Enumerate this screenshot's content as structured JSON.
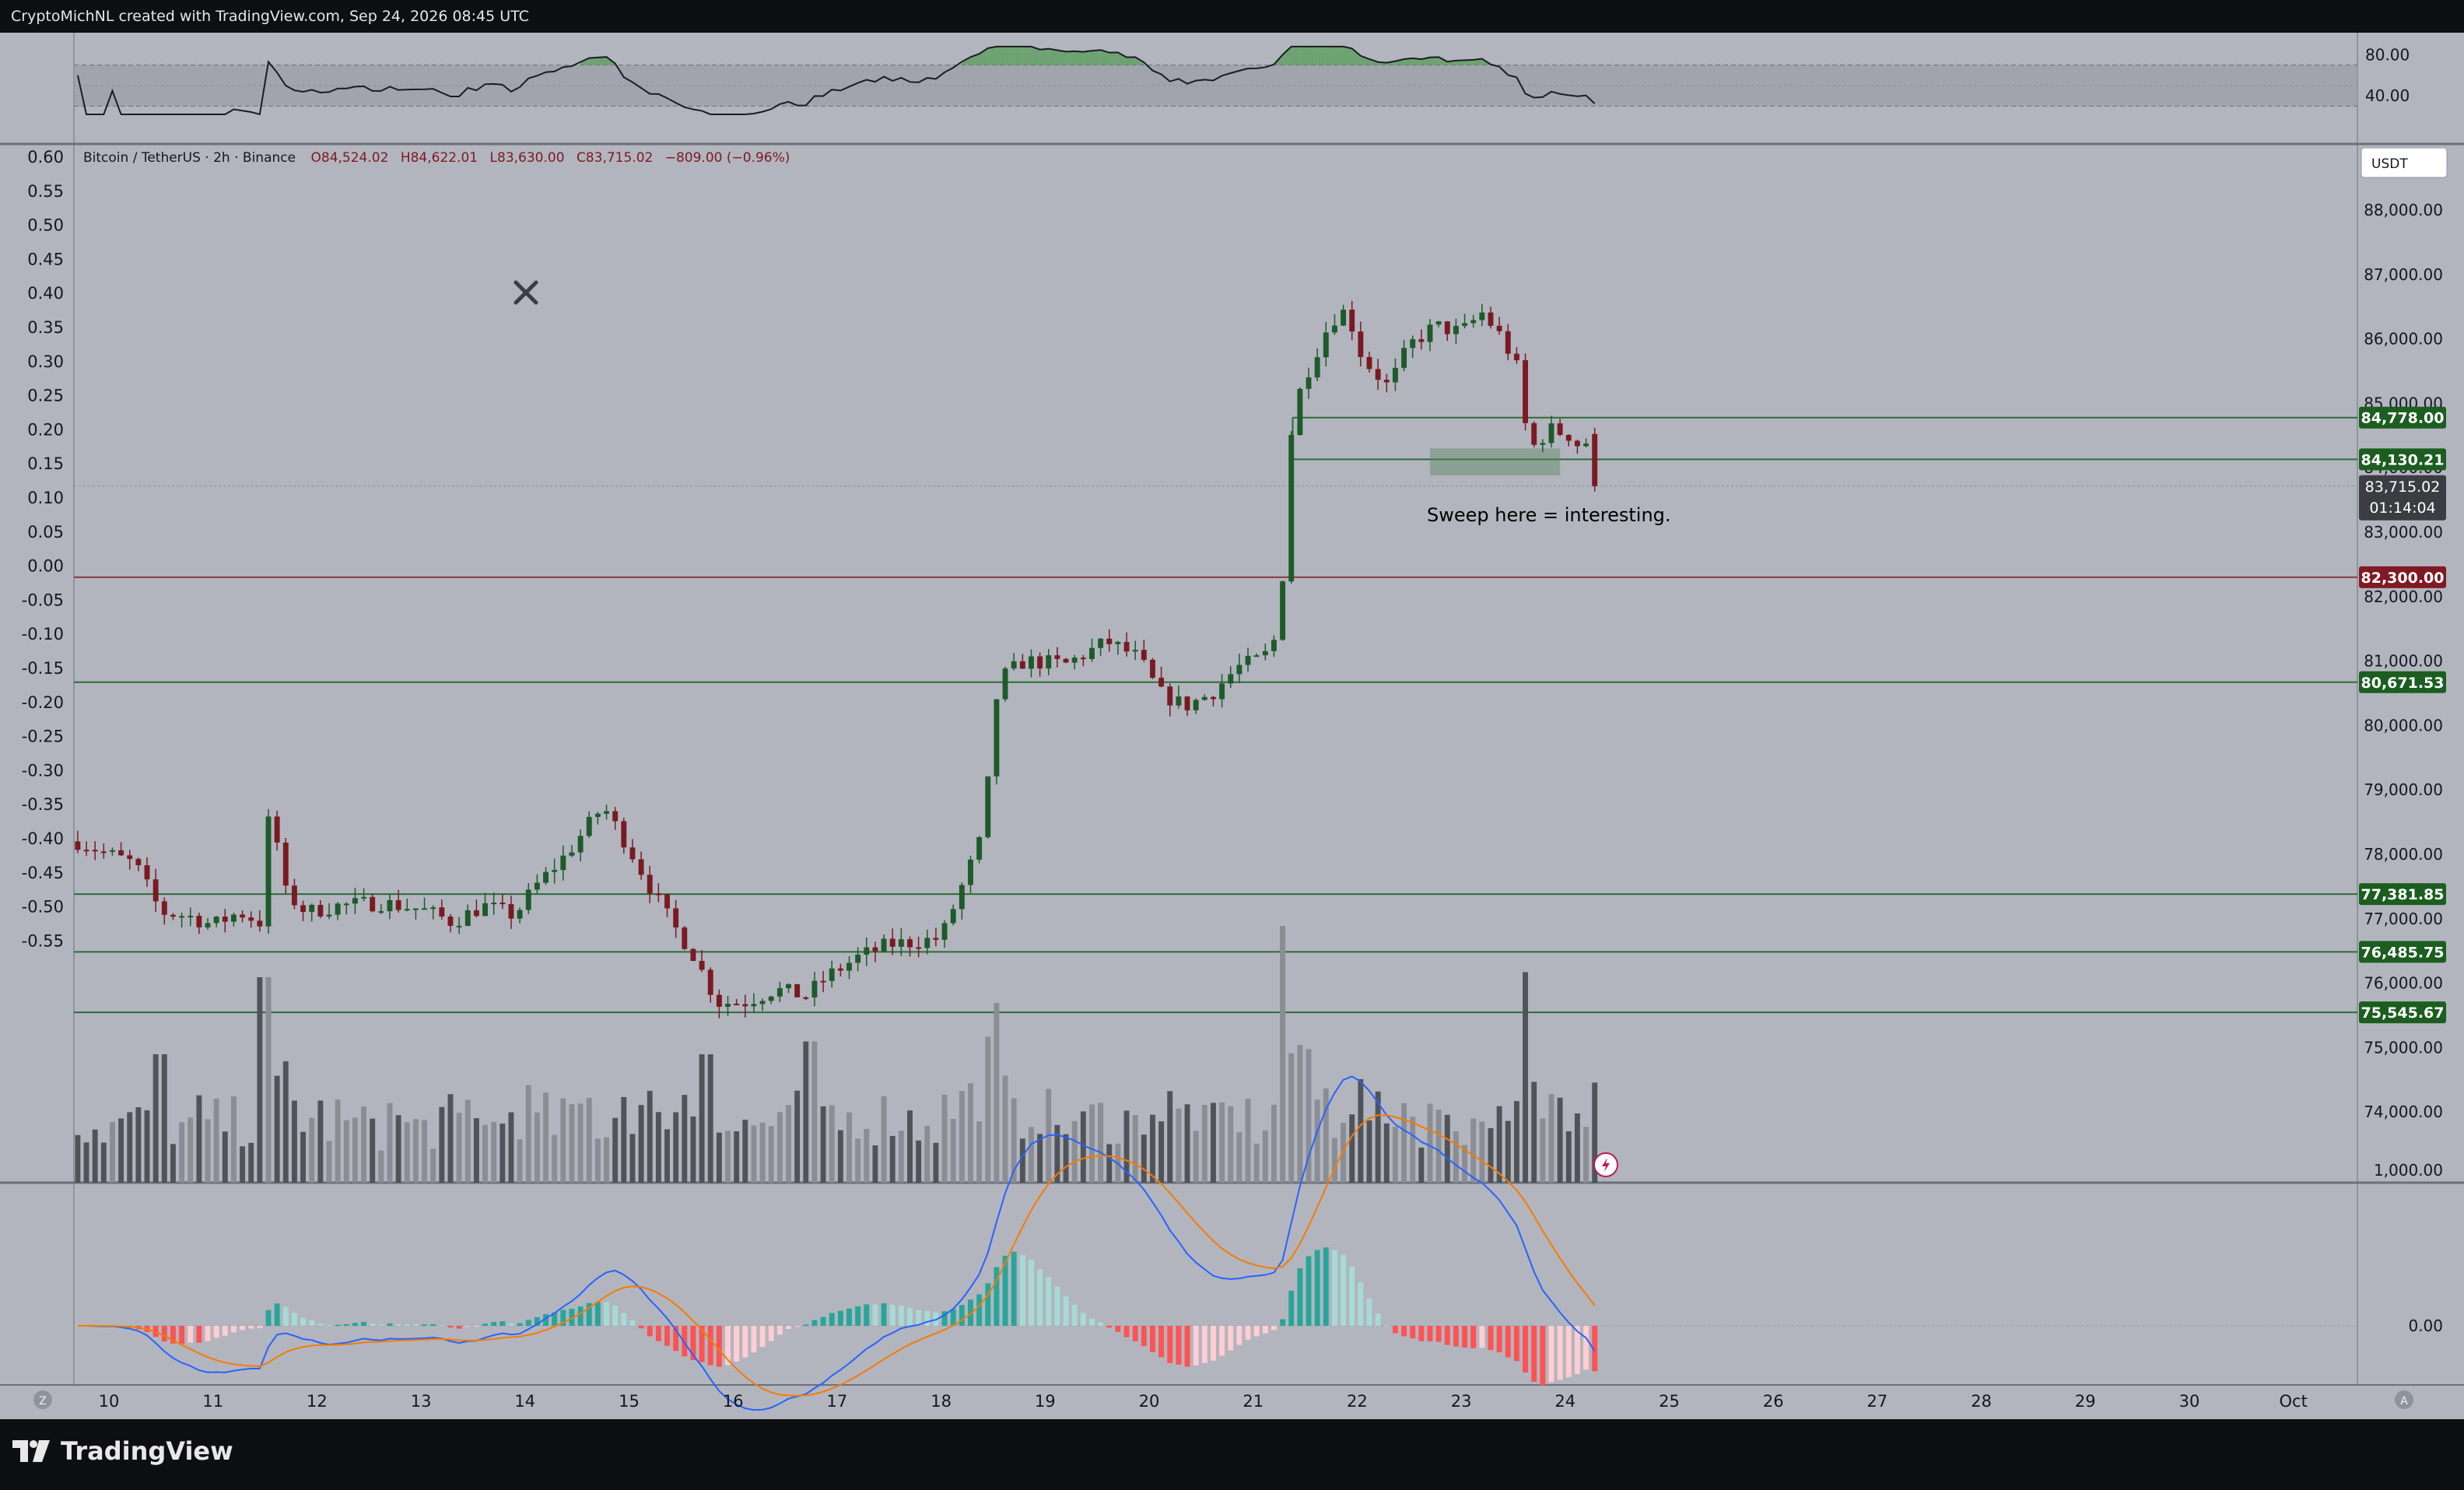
{
  "header": {
    "attribution": "CryptoMichNL created with TradingView.com, Sep 24, 2026 08:45 UTC"
  },
  "symbol_info": {
    "name": "Bitcoin / TetherUS · 2h · Binance",
    "open": "O84,524.02",
    "high": "H84,622.01",
    "low": "L83,630.00",
    "close": "C83,715.02",
    "change": "−809.00 (−0.96%)"
  },
  "currency_button": "USDT",
  "annotation_text": "Sweep here = interesting.",
  "countdown": "01:14:04",
  "brand": "TradingView",
  "z_button": "Z",
  "a_button": "A",
  "colors": {
    "background": "#b2b5be",
    "up": "#1e5a2a",
    "down": "#7a1a22",
    "volume": "#505357",
    "green_label": "#1b5e20",
    "red_label": "#801922",
    "macd": "#2962ff",
    "signal": "#f57c00"
  },
  "chart_data": {
    "type": "candlestick",
    "pair": "Bitcoin / TetherUS",
    "timeframe": "2h",
    "exchange": "Binance",
    "price_axis": {
      "ylim": [
        73700,
        88700
      ],
      "ticks": [
        "88,000.00",
        "87,000.00",
        "86,000.00",
        "85,000.00",
        "84,000.00",
        "83,000.00",
        "82,000.00",
        "81,000.00",
        "80,000.00",
        "79,000.00",
        "78,000.00",
        "77,000.00",
        "76,000.00",
        "75,000.00",
        "74,000.00"
      ]
    },
    "left_axis": {
      "ticks": [
        "0.60",
        "0.55",
        "0.50",
        "0.45",
        "0.40",
        "0.35",
        "0.30",
        "0.25",
        "0.20",
        "0.15",
        "0.10",
        "0.05",
        "0.00",
        "-0.05",
        "-0.10",
        "-0.15",
        "-0.20",
        "-0.25",
        "-0.30",
        "-0.35",
        "-0.40",
        "-0.45",
        "-0.50",
        "-0.55"
      ]
    },
    "x_axis": {
      "ticks": [
        "10",
        "11",
        "12",
        "13",
        "14",
        "15",
        "16",
        "17",
        "18",
        "19",
        "20",
        "21",
        "22",
        "23",
        "24",
        "25",
        "26",
        "27",
        "28",
        "29",
        "30",
        "Oct"
      ]
    },
    "levels": [
      {
        "price": 84778.0,
        "label": "84,778.00",
        "color": "green"
      },
      {
        "price": 84130.21,
        "label": "84,130.21",
        "color": "green"
      },
      {
        "price": 82300.0,
        "label": "82,300.00",
        "color": "red"
      },
      {
        "price": 80671.53,
        "label": "80,671.53",
        "color": "green"
      },
      {
        "price": 77381.85,
        "label": "77,381.85",
        "color": "green"
      },
      {
        "price": 76485.75,
        "label": "76,485.75",
        "color": "green"
      },
      {
        "price": 75545.67,
        "label": "75,545.67",
        "color": "green"
      }
    ],
    "last_price": {
      "price": 83715.02,
      "label": "83,715.02"
    },
    "sweep_zone": {
      "day_from": 22.7,
      "day_to": 23.95,
      "price_top": 84300,
      "price_bottom": 83880
    },
    "anchors": [
      {
        "day": 9.7,
        "price": 78200
      },
      {
        "day": 10.0,
        "price": 78000
      },
      {
        "day": 10.25,
        "price": 77850
      },
      {
        "day": 10.5,
        "price": 77100
      },
      {
        "day": 10.75,
        "price": 77050
      },
      {
        "day": 11.0,
        "price": 76900
      },
      {
        "day": 11.25,
        "price": 77100
      },
      {
        "day": 11.45,
        "price": 76950
      },
      {
        "day": 11.55,
        "price": 78800
      },
      {
        "day": 11.7,
        "price": 77400
      },
      {
        "day": 11.9,
        "price": 77100
      },
      {
        "day": 12.2,
        "price": 77200
      },
      {
        "day": 12.6,
        "price": 77250
      },
      {
        "day": 13.0,
        "price": 77150
      },
      {
        "day": 13.3,
        "price": 76950
      },
      {
        "day": 13.6,
        "price": 77200
      },
      {
        "day": 13.9,
        "price": 77050
      },
      {
        "day": 14.1,
        "price": 77500
      },
      {
        "day": 14.4,
        "price": 78000
      },
      {
        "day": 14.75,
        "price": 78750
      },
      {
        "day": 15.0,
        "price": 78100
      },
      {
        "day": 15.2,
        "price": 77500
      },
      {
        "day": 15.4,
        "price": 76950
      },
      {
        "day": 15.6,
        "price": 76500
      },
      {
        "day": 15.85,
        "price": 75700
      },
      {
        "day": 16.1,
        "price": 75700
      },
      {
        "day": 16.4,
        "price": 75900
      },
      {
        "day": 16.7,
        "price": 75800
      },
      {
        "day": 16.9,
        "price": 76100
      },
      {
        "day": 17.2,
        "price": 76400
      },
      {
        "day": 17.5,
        "price": 76600
      },
      {
        "day": 17.8,
        "price": 76650
      },
      {
        "day": 18.0,
        "price": 76700
      },
      {
        "day": 18.2,
        "price": 77500
      },
      {
        "day": 18.4,
        "price": 78300
      },
      {
        "day": 18.55,
        "price": 80700
      },
      {
        "day": 18.8,
        "price": 81000
      },
      {
        "day": 19.2,
        "price": 80950
      },
      {
        "day": 19.6,
        "price": 81300
      },
      {
        "day": 19.9,
        "price": 81050
      },
      {
        "day": 20.1,
        "price": 80500
      },
      {
        "day": 20.35,
        "price": 80300
      },
      {
        "day": 20.6,
        "price": 80500
      },
      {
        "day": 20.85,
        "price": 80900
      },
      {
        "day": 21.1,
        "price": 81050
      },
      {
        "day": 21.25,
        "price": 81450
      },
      {
        "day": 21.38,
        "price": 84900
      },
      {
        "day": 21.55,
        "price": 85600
      },
      {
        "day": 21.75,
        "price": 86300
      },
      {
        "day": 21.9,
        "price": 86450
      },
      {
        "day": 22.05,
        "price": 85700
      },
      {
        "day": 22.3,
        "price": 85250
      },
      {
        "day": 22.5,
        "price": 85900
      },
      {
        "day": 22.75,
        "price": 86200
      },
      {
        "day": 23.0,
        "price": 86100
      },
      {
        "day": 23.2,
        "price": 86400
      },
      {
        "day": 23.4,
        "price": 86000
      },
      {
        "day": 23.55,
        "price": 85500
      },
      {
        "day": 23.65,
        "price": 84250
      },
      {
        "day": 23.85,
        "price": 84600
      },
      {
        "day": 24.05,
        "price": 84500
      },
      {
        "day": 24.15,
        "price": 84300
      },
      {
        "day": 24.25,
        "price": 84500
      },
      {
        "day": 24.32,
        "price": 83715
      }
    ],
    "volume_spikes": [
      {
        "day": 11.5,
        "height": 0.8
      },
      {
        "day": 21.3,
        "height": 1.0
      },
      {
        "day": 23.6,
        "height": 0.82
      },
      {
        "day": 18.55,
        "height": 0.7
      },
      {
        "day": 16.75,
        "height": 0.55
      },
      {
        "day": 15.75,
        "height": 0.5
      },
      {
        "day": 10.5,
        "height": 0.5
      },
      {
        "day": 21.5,
        "height": 0.52
      }
    ],
    "rsi_panel": {
      "ticks": [
        "80.00",
        "40.00"
      ],
      "band_upper": 70,
      "band_lower": 30
    },
    "macd_panel": {
      "ticks": [
        "1,000.00",
        "0.00"
      ]
    }
  }
}
